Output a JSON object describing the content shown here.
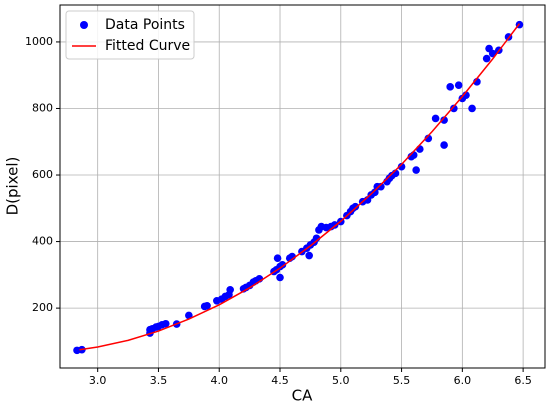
{
  "chart_data": {
    "type": "scatter",
    "xlabel": "CA",
    "ylabel": "D(pixel)",
    "xlim": [
      2.69,
      6.68
    ],
    "ylim": [
      20,
      1111
    ],
    "xticks": [
      {
        "value": 3.0,
        "label": "3.0"
      },
      {
        "value": 3.5,
        "label": "3.5"
      },
      {
        "value": 4.0,
        "label": "4.0"
      },
      {
        "value": 4.5,
        "label": "4.5"
      },
      {
        "value": 5.0,
        "label": "5.0"
      },
      {
        "value": 5.5,
        "label": "5.5"
      },
      {
        "value": 6.0,
        "label": "6.0"
      },
      {
        "value": 6.5,
        "label": "6.5"
      }
    ],
    "yticks": [
      200,
      400,
      600,
      800,
      1000
    ],
    "grid": true,
    "legend": "upper left",
    "series": [
      {
        "name": "Data Points",
        "color": "#0000ff",
        "type": "scatter",
        "x": [
          2.83,
          2.87,
          3.43,
          3.43,
          3.45,
          3.48,
          3.5,
          3.53,
          3.56,
          3.65,
          3.75,
          3.88,
          3.9,
          3.98,
          4.02,
          4.05,
          4.08,
          4.09,
          4.2,
          4.22,
          4.25,
          4.28,
          4.3,
          4.33,
          4.45,
          4.47,
          4.48,
          4.5,
          4.5,
          4.52,
          4.58,
          4.6,
          4.68,
          4.72,
          4.74,
          4.75,
          4.78,
          4.8,
          4.82,
          4.84,
          4.88,
          4.92,
          4.95,
          5.0,
          5.05,
          5.08,
          5.1,
          5.12,
          5.18,
          5.22,
          5.25,
          5.28,
          5.3,
          5.33,
          5.38,
          5.4,
          5.42,
          5.45,
          5.5,
          5.58,
          5.6,
          5.62,
          5.65,
          5.72,
          5.78,
          5.85,
          5.85,
          5.9,
          5.93,
          5.97,
          6.0,
          6.03,
          6.08,
          6.12,
          6.2,
          6.22,
          6.25,
          6.3,
          6.38,
          6.47
        ],
        "values": [
          73,
          75,
          125,
          135,
          138,
          143,
          145,
          150,
          153,
          152,
          178,
          205,
          207,
          222,
          227,
          235,
          240,
          255,
          258,
          262,
          268,
          278,
          282,
          288,
          310,
          315,
          350,
          292,
          325,
          330,
          350,
          355,
          370,
          380,
          358,
          390,
          398,
          410,
          435,
          445,
          442,
          445,
          450,
          460,
          478,
          490,
          500,
          505,
          520,
          525,
          540,
          548,
          565,
          565,
          580,
          590,
          598,
          605,
          625,
          655,
          660,
          615,
          678,
          710,
          770,
          765,
          690,
          865,
          800,
          870,
          830,
          840,
          800,
          880,
          950,
          980,
          965,
          975,
          1015,
          1052
        ]
      },
      {
        "name": "Fitted Curve",
        "color": "#ff0000",
        "type": "line",
        "x": [
          2.85,
          3.0,
          3.25,
          3.5,
          3.75,
          4.0,
          4.25,
          4.5,
          4.75,
          5.0,
          5.25,
          5.5,
          5.75,
          6.0,
          6.25,
          6.47
        ],
        "values": [
          75,
          83,
          103,
          131,
          167,
          210,
          261,
          320,
          387,
          461,
          543,
          632,
          730,
          836,
          949,
          1055
        ]
      }
    ]
  }
}
